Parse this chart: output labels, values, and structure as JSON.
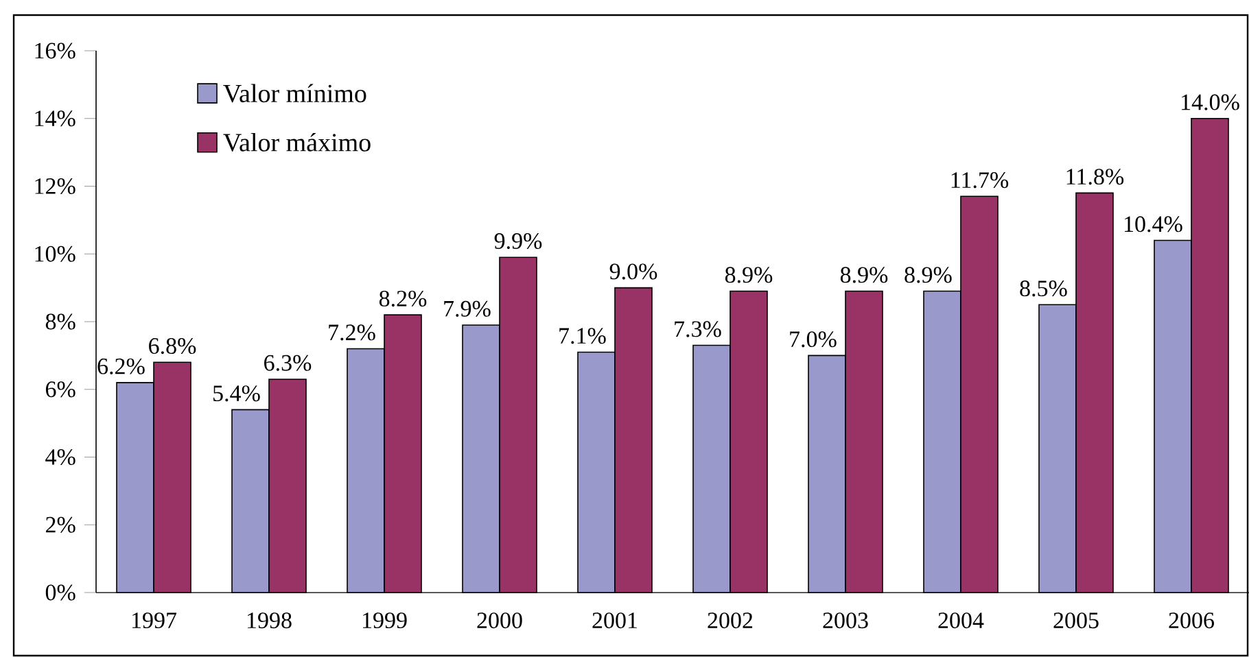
{
  "chart_data": {
    "type": "bar",
    "categories": [
      "1997",
      "1998",
      "1999",
      "2000",
      "2001",
      "2002",
      "2003",
      "2004",
      "2005",
      "2006"
    ],
    "series": [
      {
        "name": "Valor mínimo",
        "color": "#9999cc",
        "values": [
          6.2,
          5.4,
          7.2,
          7.9,
          7.1,
          7.3,
          7.0,
          8.9,
          8.5,
          10.4
        ],
        "value_labels": [
          "6.2%",
          "5.4%",
          "7.2%",
          "7.9%",
          "7.1%",
          "7.3%",
          "7.0%",
          "8.9%",
          "8.5%",
          "10.4%"
        ]
      },
      {
        "name": "Valor máximo",
        "color": "#993366",
        "values": [
          6.8,
          6.3,
          8.2,
          9.9,
          9.0,
          8.9,
          8.9,
          11.7,
          11.8,
          14.0
        ],
        "value_labels": [
          "6.8%",
          "6.3%",
          "8.2%",
          "9.9%",
          "9.0%",
          "8.9%",
          "8.9%",
          "11.7%",
          "11.8%",
          "14.0%"
        ]
      }
    ],
    "ylim": [
      0,
      16
    ],
    "yticks": [
      {
        "value": 0,
        "label": "0%"
      },
      {
        "value": 2,
        "label": "2%"
      },
      {
        "value": 4,
        "label": "4%"
      },
      {
        "value": 6,
        "label": "6%"
      },
      {
        "value": 8,
        "label": "8%"
      },
      {
        "value": 10,
        "label": "10%"
      },
      {
        "value": 12,
        "label": "12%"
      },
      {
        "value": 14,
        "label": "14%"
      },
      {
        "value": 16,
        "label": "16%"
      }
    ],
    "legend": "top left",
    "grid": false
  }
}
